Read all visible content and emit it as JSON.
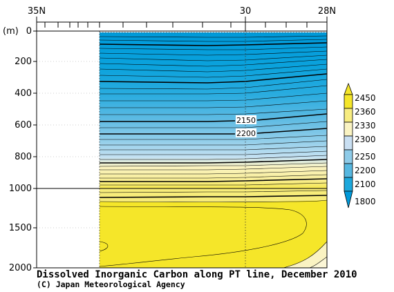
{
  "chart_data": {
    "type": "contour",
    "title": "Dissolved Inorganic Carbon along PT line, December 2010",
    "credit": "(C) Japan Meteorological Agency",
    "x_axis": {
      "position": "top",
      "ticks": [
        {
          "lat": 35,
          "label": "35N"
        },
        {
          "lat": 30,
          "label": "30"
        },
        {
          "lat": 28,
          "label": "28N"
        }
      ],
      "range": [
        35,
        28
      ]
    },
    "y_axis": {
      "unit_label": "(m)",
      "upper_segment": {
        "range": [
          0,
          1000
        ],
        "ticks": [
          0,
          200,
          400,
          600,
          800,
          1000
        ]
      },
      "lower_segment": {
        "range": [
          1000,
          2000
        ],
        "ticks": [
          1500,
          2000
        ]
      }
    },
    "data_extent": {
      "lat_start": 32.6,
      "lat_end": 28
    },
    "contour_labels": [
      {
        "text": "2150",
        "lat": 30,
        "depth": 570
      },
      {
        "text": "2200",
        "lat": 30,
        "depth": 650
      }
    ],
    "colorbar": {
      "levels": [
        "2450",
        "2360",
        "2330",
        "2300",
        "2250",
        "2200",
        "2100",
        "1800"
      ],
      "colors": [
        "#f5e629",
        "#f7ec80",
        "#faf3c2",
        "#c9dff2",
        "#8ecbe8",
        "#56b7e0",
        "#1da8dc",
        "#0099d9"
      ]
    }
  }
}
